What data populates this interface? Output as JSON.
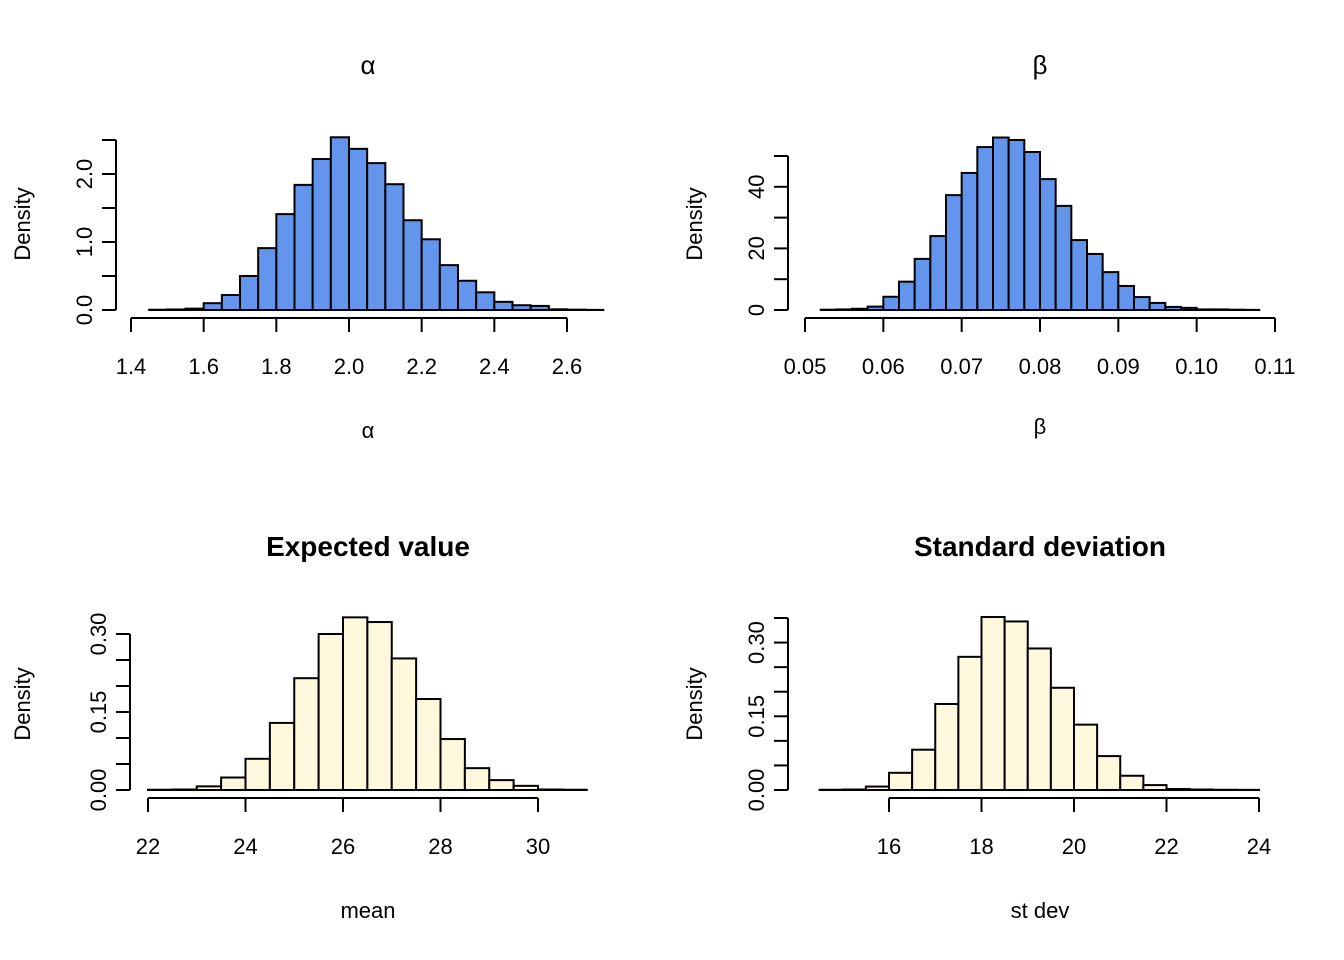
{
  "chart_data": [
    {
      "type": "bar",
      "subtype": "histogram",
      "title": "α",
      "title_bold": false,
      "xlabel": "α",
      "ylabel": "Density",
      "fill_color": "#6495ED",
      "bin_start": 1.45,
      "bin_width": 0.05,
      "values": [
        0.004,
        0.008,
        0.02,
        0.1,
        0.22,
        0.5,
        0.91,
        1.41,
        1.84,
        2.22,
        2.54,
        2.37,
        2.16,
        1.85,
        1.32,
        1.04,
        0.66,
        0.43,
        0.26,
        0.12,
        0.07,
        0.06,
        0.01,
        0.005,
        0.002
      ],
      "xlim": [
        1.4,
        2.6
      ],
      "ylim": [
        0,
        2.5
      ],
      "xticks": [
        1.4,
        1.6,
        1.8,
        2.0,
        2.2,
        2.4,
        2.6
      ],
      "xtick_labels": [
        "1.4",
        "1.6",
        "1.8",
        "2.0",
        "2.2",
        "2.4",
        "2.6"
      ],
      "yticks": [
        0,
        0.5,
        1.0,
        1.5,
        2.0,
        2.5
      ],
      "ytick_labels": [
        "0.0",
        "",
        "1.0",
        "",
        "2.0",
        ""
      ],
      "grid": false
    },
    {
      "type": "bar",
      "subtype": "histogram",
      "title": "β",
      "title_bold": false,
      "xlabel": "β",
      "ylabel": "Density",
      "fill_color": "#6495ED",
      "bin_start": 0.052,
      "bin_width": 0.002,
      "values": [
        0.1,
        0.2,
        0.4,
        1.1,
        4.3,
        9.2,
        16.6,
        24.0,
        37.3,
        44.5,
        52.9,
        56.0,
        55.2,
        51.3,
        42.5,
        33.8,
        22.7,
        18.2,
        12.3,
        7.8,
        4.2,
        2.3,
        1.0,
        0.7,
        0.2,
        0.2,
        0.1,
        0.05
      ],
      "xlim": [
        0.05,
        0.11
      ],
      "ylim": [
        0,
        50
      ],
      "xticks": [
        0.05,
        0.06,
        0.07,
        0.08,
        0.09,
        0.1,
        0.11
      ],
      "xtick_labels": [
        "0.05",
        "0.06",
        "0.07",
        "0.08",
        "0.09",
        "0.10",
        "0.11"
      ],
      "yticks": [
        0,
        10,
        20,
        30,
        40,
        50
      ],
      "ytick_labels": [
        "0",
        "",
        "20",
        "",
        "40",
        ""
      ],
      "grid": false
    },
    {
      "type": "bar",
      "subtype": "histogram",
      "title": "Expected value",
      "title_bold": true,
      "xlabel": "mean",
      "ylabel": "Density",
      "fill_color": "#FFF8DC",
      "bin_start": 22.0,
      "bin_width": 0.5,
      "values": [
        0.0005,
        0.001,
        0.007,
        0.024,
        0.06,
        0.129,
        0.215,
        0.3,
        0.332,
        0.323,
        0.253,
        0.175,
        0.098,
        0.042,
        0.019,
        0.008,
        0.001,
        0.0005
      ],
      "xlim": [
        22,
        30
      ],
      "ylim": [
        0,
        0.3
      ],
      "xticks": [
        22,
        24,
        26,
        28,
        30
      ],
      "xtick_labels": [
        "22",
        "24",
        "26",
        "28",
        "30"
      ],
      "yticks": [
        0,
        0.05,
        0.1,
        0.15,
        0.2,
        0.25,
        0.3
      ],
      "ytick_labels": [
        "0.00",
        "",
        "",
        "0.15",
        "",
        "",
        "0.30"
      ],
      "grid": false
    },
    {
      "type": "bar",
      "subtype": "histogram",
      "title": "Standard deviation",
      "title_bold": true,
      "xlabel": "st dev",
      "ylabel": "Density",
      "fill_color": "#FFF8DC",
      "bin_start": 14.5,
      "bin_width": 0.5,
      "values": [
        0.0005,
        0.001,
        0.007,
        0.035,
        0.082,
        0.175,
        0.271,
        0.352,
        0.343,
        0.288,
        0.208,
        0.133,
        0.069,
        0.029,
        0.01,
        0.002,
        0.001,
        0.0005,
        0.0003
      ],
      "xlim": [
        16,
        24
      ],
      "ylim": [
        0,
        0.35
      ],
      "xticks": [
        16,
        18,
        20,
        22,
        24
      ],
      "xtick_labels": [
        "16",
        "18",
        "20",
        "22",
        "24"
      ],
      "yticks": [
        0,
        0.05,
        0.1,
        0.15,
        0.2,
        0.25,
        0.3,
        0.35
      ],
      "ytick_labels": [
        "0.00",
        "",
        "",
        "0.15",
        "",
        "",
        "0.30",
        ""
      ],
      "grid": false
    }
  ]
}
